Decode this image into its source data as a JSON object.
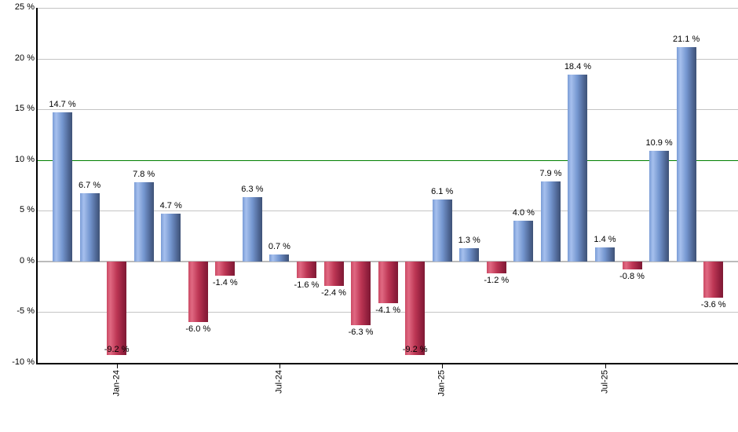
{
  "chart_data": {
    "type": "bar",
    "title": "",
    "ylabel": "",
    "xlabel": "",
    "ylim": [
      -10,
      25
    ],
    "grid": true,
    "bars": [
      {
        "value": 14.7,
        "label": "14.7 %"
      },
      {
        "value": 6.7,
        "label": "6.7 %"
      },
      {
        "value": -9.2,
        "label": "-9.2 %"
      },
      {
        "value": 7.8,
        "label": "7.8 %"
      },
      {
        "value": 4.7,
        "label": "4.7 %"
      },
      {
        "value": -6.0,
        "label": "-6.0 %"
      },
      {
        "value": -1.4,
        "label": "-1.4 %"
      },
      {
        "value": 6.3,
        "label": "6.3 %"
      },
      {
        "value": 0.7,
        "label": "0.7 %"
      },
      {
        "value": -1.6,
        "label": "-1.6 %"
      },
      {
        "value": -2.4,
        "label": "-2.4 %"
      },
      {
        "value": -6.3,
        "label": "-6.3 %"
      },
      {
        "value": -4.1,
        "label": "-4.1 %"
      },
      {
        "value": -9.2,
        "label": "-9.2 %"
      },
      {
        "value": 6.1,
        "label": "6.1 %"
      },
      {
        "value": 1.3,
        "label": "1.3 %"
      },
      {
        "value": -1.2,
        "label": "-1.2 %"
      },
      {
        "value": 4.0,
        "label": "4.0 %"
      },
      {
        "value": 7.9,
        "label": "7.9 %"
      },
      {
        "value": 18.4,
        "label": "18.4 %"
      },
      {
        "value": 1.4,
        "label": "1.4 %"
      },
      {
        "value": -0.8,
        "label": "-0.8 %"
      },
      {
        "value": 10.9,
        "label": "10.9 %"
      },
      {
        "value": 21.1,
        "label": "21.1 %"
      },
      {
        "value": -3.6,
        "label": "-3.6 %"
      }
    ],
    "y_ticks": [
      {
        "value": 25,
        "label": "25 %"
      },
      {
        "value": 20,
        "label": "20 %"
      },
      {
        "value": 15,
        "label": "15 %"
      },
      {
        "value": 10,
        "label": "10 %"
      },
      {
        "value": 5,
        "label": "5 %"
      },
      {
        "value": 0,
        "label": "0 %"
      },
      {
        "value": -5,
        "label": "-5 %"
      },
      {
        "value": -10,
        "label": "-10 %"
      }
    ],
    "x_ticks": [
      {
        "bar_index": 2,
        "label": "Jan-24"
      },
      {
        "bar_index": 8,
        "label": "Jul-24"
      },
      {
        "bar_index": 14,
        "label": "Jan-25"
      },
      {
        "bar_index": 20,
        "label": "Jul-25"
      }
    ],
    "reference_line": {
      "value": 10,
      "color": "#008000"
    },
    "legend": [],
    "colors": {
      "positive_bar_gradient": [
        "#7a9cd6",
        "#a6c0ee",
        "#7496cf",
        "#4f6795",
        "#3e5276"
      ],
      "negative_bar_gradient": [
        "#cb4a64",
        "#e06982",
        "#be3755",
        "#94203e",
        "#7e1a34"
      ],
      "gridline": "#c4c4c4",
      "zero_line": "#bbbbbb",
      "axis": "#000000",
      "label_text": "#000000",
      "background": "#ffffff"
    }
  }
}
